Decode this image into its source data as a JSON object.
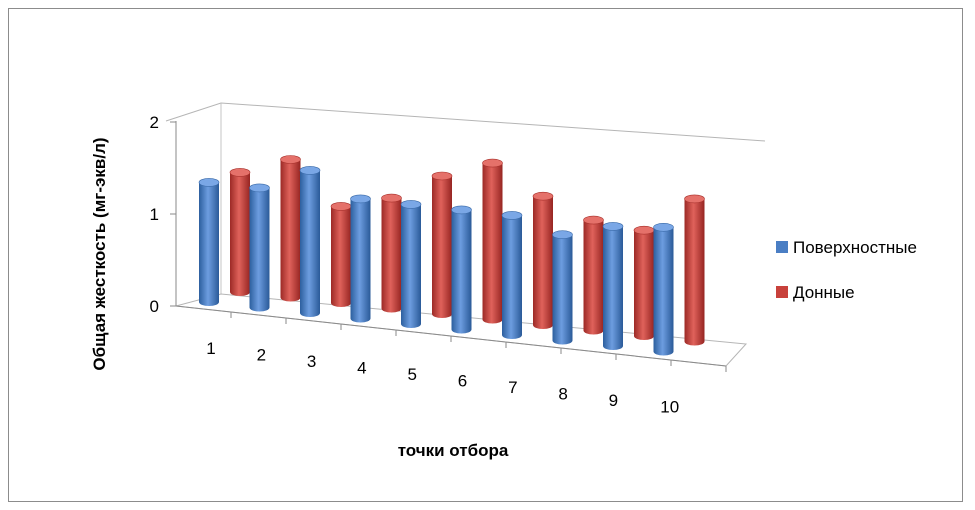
{
  "chart_data": {
    "type": "bar",
    "title": "",
    "xlabel": "точки отбора",
    "ylabel": "Общая жесткость (мг-экв/л)",
    "categories": [
      "1",
      "2",
      "3",
      "4",
      "5",
      "6",
      "7",
      "8",
      "9",
      "10"
    ],
    "ylim": [
      0,
      2
    ],
    "yticks": [
      "0",
      "1",
      "2"
    ],
    "grid": false,
    "legend_position": "right",
    "series": [
      {
        "name": "Поверхностные",
        "color": "#4a7ec4",
        "values": [
          1.3,
          1.3,
          1.55,
          1.3,
          1.3,
          1.3,
          1.3,
          1.15,
          1.3,
          1.35
        ]
      },
      {
        "name": "Донные",
        "color": "#c8413b",
        "values": [
          1.3,
          1.5,
          1.05,
          1.2,
          1.5,
          1.7,
          1.4,
          1.2,
          1.15,
          1.55
        ]
      }
    ]
  }
}
